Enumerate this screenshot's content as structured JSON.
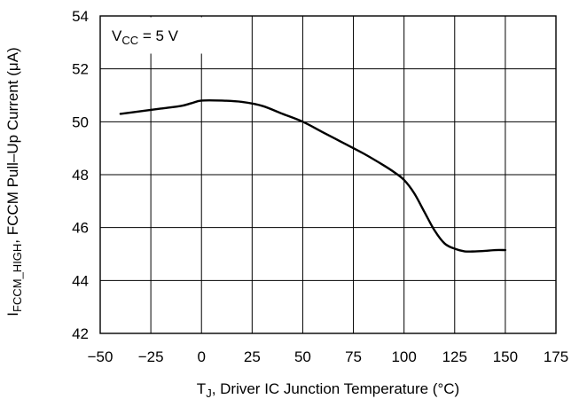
{
  "chart_data": {
    "type": "line",
    "title": "",
    "annotation": {
      "main": "V",
      "sub": "CC",
      "rest": " = 5 V"
    },
    "xlabel": {
      "main": "T",
      "sub": "J",
      "rest": ", Driver IC Junction Temperature (°C)"
    },
    "ylabel": {
      "main": "I",
      "sub": "FCCM_HIGH",
      "rest": ", FCCM Pull–Up Current (μA)"
    },
    "xlim": [
      -50,
      175
    ],
    "ylim": [
      42,
      54
    ],
    "x_ticks": [
      "−50",
      "−25",
      "0",
      "25",
      "50",
      "75",
      "100",
      "125",
      "150",
      "175"
    ],
    "y_ticks": [
      "42",
      "44",
      "46",
      "48",
      "50",
      "52",
      "54"
    ],
    "grid": true,
    "series": [
      {
        "x": [
          -40,
          -30,
          -20,
          -10,
          -5,
          0,
          10,
          20,
          30,
          40,
          50,
          60,
          70,
          80,
          90,
          95,
          100,
          105,
          110,
          115,
          120,
          125,
          130,
          135,
          140,
          145,
          150
        ],
        "values": [
          50.3,
          50.4,
          50.5,
          50.6,
          50.7,
          50.8,
          50.8,
          50.75,
          50.6,
          50.3,
          50.0,
          49.6,
          49.2,
          48.8,
          48.35,
          48.1,
          47.8,
          47.3,
          46.6,
          45.9,
          45.4,
          45.2,
          45.1,
          45.1,
          45.12,
          45.15,
          45.15
        ]
      }
    ]
  }
}
